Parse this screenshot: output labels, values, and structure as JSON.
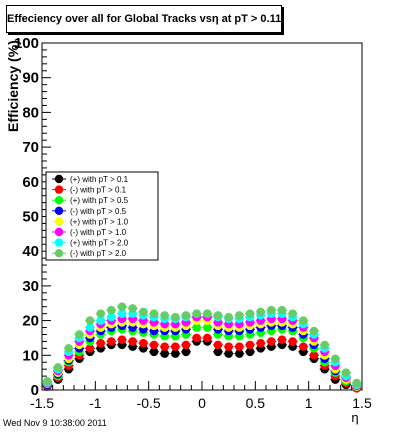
{
  "title": "Effeciency over all for Global Tracks vsη at pT > 0.11",
  "footer": "Wed Nov  9 10:38:00 2011",
  "chart_data": {
    "type": "scatter",
    "title": "Effeciency over all for Global Tracks vsη at pT > 0.11",
    "xlabel": "η",
    "ylabel": "Efficiency (%)",
    "xlim": [
      -1.5,
      1.5
    ],
    "ylim": [
      0,
      100
    ],
    "x_ticks": [
      "-1.5",
      "-1",
      "-0.5",
      "0",
      "0.5",
      "1",
      "1.5"
    ],
    "y_ticks": [
      "0",
      "10",
      "20",
      "30",
      "40",
      "50",
      "60",
      "70",
      "80",
      "90",
      "100"
    ],
    "x": [
      -1.45,
      -1.35,
      -1.25,
      -1.15,
      -1.05,
      -0.95,
      -0.85,
      -0.75,
      -0.65,
      -0.55,
      -0.45,
      -0.35,
      -0.25,
      -0.15,
      -0.05,
      0.05,
      0.15,
      0.25,
      0.35,
      0.45,
      0.55,
      0.65,
      0.75,
      0.85,
      0.95,
      1.05,
      1.15,
      1.25,
      1.35,
      1.45
    ],
    "legend_position": "left",
    "series": [
      {
        "name": "(+) with pT > 0.1",
        "color": "#000000",
        "values": [
          1,
          3,
          6,
          9,
          11,
          12,
          13,
          13,
          12.5,
          12,
          11,
          10.5,
          10.5,
          11,
          14,
          14,
          11,
          10.5,
          10.5,
          11,
          12,
          12.5,
          13,
          12.5,
          11,
          9,
          6,
          3,
          1.5,
          0.5
        ]
      },
      {
        "name": "(-) with pT > 0.1",
        "color": "#ff0000",
        "values": [
          1.2,
          3.5,
          7,
          10,
          12,
          13.5,
          14,
          14.5,
          14,
          13.5,
          13,
          12.5,
          12.5,
          13,
          15,
          15,
          13,
          12.5,
          12.5,
          13,
          13.5,
          14,
          14.5,
          14,
          12.5,
          10,
          7,
          4,
          2,
          0.5
        ]
      },
      {
        "name": "(+) with pT > 0.5",
        "color": "#00ff00",
        "values": [
          1.5,
          4,
          8,
          11,
          14,
          16,
          17,
          17.5,
          17,
          16.5,
          16,
          15.5,
          15.5,
          16,
          18,
          18,
          16,
          15.5,
          15.5,
          16,
          16.5,
          17,
          17.5,
          17,
          15,
          12,
          8,
          5,
          2.5,
          1
        ]
      },
      {
        "name": "(-) with pT > 0.5",
        "color": "#0000ff",
        "values": [
          1.5,
          4.5,
          8.5,
          12,
          15,
          17,
          18,
          18.5,
          18,
          17.5,
          17,
          17,
          17,
          17.5,
          21,
          21,
          17.5,
          17,
          17,
          17.5,
          18,
          18.5,
          18.5,
          18,
          16,
          13,
          9,
          5.5,
          3,
          1
        ]
      },
      {
        "name": "(+) with pT > 1.0",
        "color": "#ffff00",
        "values": [
          1.8,
          5,
          9,
          13,
          16,
          18,
          19,
          19.5,
          19.5,
          19,
          18.5,
          18,
          18,
          18.5,
          20,
          20,
          18.5,
          18,
          18,
          18.5,
          19,
          19.5,
          19.5,
          19,
          17,
          14,
          10,
          6,
          3,
          1
        ]
      },
      {
        "name": "(-) with pT > 1.0",
        "color": "#ff00ff",
        "values": [
          2,
          5.5,
          10,
          14,
          17,
          19,
          20,
          20.5,
          20.5,
          20,
          19.5,
          19,
          19,
          19.5,
          21,
          21,
          19.5,
          19,
          19,
          19.5,
          20,
          20.5,
          20.5,
          20,
          18,
          15,
          11,
          7,
          3.5,
          1.2
        ]
      },
      {
        "name": "(+) with pT > 2.0",
        "color": "#00ffff",
        "values": [
          2.2,
          6,
          11,
          15,
          18,
          20,
          21,
          22,
          22,
          21.5,
          21,
          20.5,
          20.5,
          21,
          22,
          22,
          21,
          20.5,
          20.5,
          21,
          21.5,
          22,
          22,
          21,
          19,
          16,
          12,
          8,
          4,
          1.5
        ]
      },
      {
        "name": "(-) with pT > 2.0",
        "color": "#66cc66",
        "values": [
          2.5,
          6.5,
          12,
          16,
          20,
          22,
          23,
          24,
          23.5,
          22.5,
          22,
          21.5,
          21,
          21.5,
          22,
          22,
          21.5,
          21,
          21.5,
          22,
          22.5,
          23,
          23,
          22,
          20,
          17,
          13,
          9,
          5,
          2
        ]
      }
    ]
  }
}
